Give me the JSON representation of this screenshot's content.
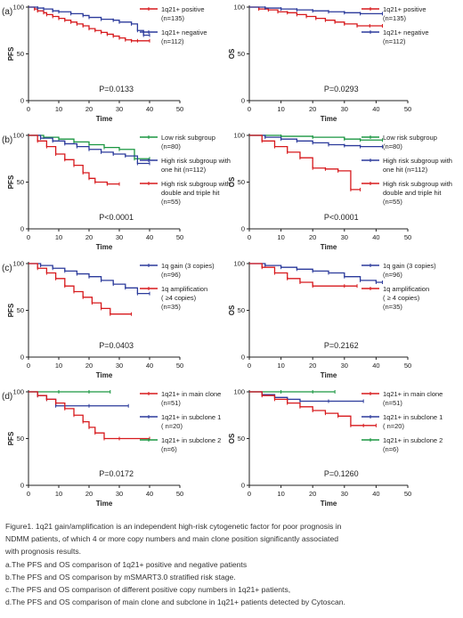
{
  "colors": {
    "red": "#d7191c",
    "blue": "#2b3a9b",
    "green": "#1a9641",
    "axis": "#222222"
  },
  "chart_data": [
    {
      "type": "line",
      "panel": "(a)",
      "xlabel": "Time",
      "ylabel": "PFS",
      "xlim": [
        0,
        50
      ],
      "ylim": [
        0,
        100
      ],
      "xticks": [
        "0",
        "10",
        "20",
        "30",
        "40",
        "50"
      ],
      "yticks": [
        "0",
        "50",
        "100"
      ],
      "annotation": "P=0.0133",
      "legend": [
        {
          "color": "red",
          "lines": [
            "1q21+ positive",
            "(n=135)"
          ]
        },
        {
          "color": "blue",
          "lines": [
            "1q21+ negative",
            "(n=112)"
          ]
        }
      ],
      "series": [
        {
          "color": "red",
          "x": [
            0,
            2,
            3,
            5,
            6,
            8,
            10,
            12,
            14,
            16,
            18,
            20,
            22,
            24,
            26,
            28,
            30,
            32,
            34,
            36,
            40
          ],
          "y": [
            100,
            98,
            96,
            94,
            92,
            90,
            88,
            86,
            84,
            82,
            80,
            77,
            75,
            73,
            71,
            69,
            67,
            65,
            64,
            64,
            64
          ]
        },
        {
          "color": "blue",
          "x": [
            0,
            3,
            5,
            8,
            10,
            14,
            18,
            20,
            24,
            28,
            30,
            34,
            36,
            38,
            40
          ],
          "y": [
            100,
            99,
            98,
            96,
            95,
            93,
            91,
            89,
            87,
            86,
            84,
            82,
            75,
            70,
            70
          ]
        }
      ]
    },
    {
      "type": "line",
      "panel": "",
      "xlabel": "Time",
      "ylabel": "OS",
      "xlim": [
        0,
        50
      ],
      "ylim": [
        0,
        100
      ],
      "xticks": [
        "0",
        "10",
        "20",
        "30",
        "40",
        "50"
      ],
      "yticks": [
        "0",
        "50",
        "100"
      ],
      "annotation": "P=0.0293",
      "legend": [
        {
          "color": "red",
          "lines": [
            "1q21+ positive",
            "(n=135)"
          ]
        },
        {
          "color": "blue",
          "lines": [
            "1q21+ negative",
            "(n=112)"
          ]
        }
      ],
      "series": [
        {
          "color": "red",
          "x": [
            0,
            3,
            6,
            9,
            12,
            15,
            18,
            21,
            24,
            27,
            30,
            34,
            38,
            42
          ],
          "y": [
            100,
            98,
            97,
            95,
            94,
            92,
            90,
            88,
            86,
            84,
            82,
            80,
            80,
            80
          ]
        },
        {
          "color": "blue",
          "x": [
            0,
            5,
            10,
            15,
            20,
            25,
            30,
            35,
            42
          ],
          "y": [
            100,
            99,
            98,
            97,
            96,
            95,
            94,
            93,
            93
          ]
        }
      ]
    },
    {
      "type": "line",
      "panel": "(b)",
      "xlabel": "Time",
      "ylabel": "PFS",
      "xlim": [
        0,
        50
      ],
      "ylim": [
        0,
        100
      ],
      "xticks": [
        "0",
        "10",
        "20",
        "30",
        "40",
        "50"
      ],
      "yticks": [
        "0",
        "50",
        "100"
      ],
      "annotation": "P<0.0001",
      "legend": [
        {
          "color": "green",
          "lines": [
            "Low risk subgroup",
            "(n=80)"
          ]
        },
        {
          "color": "blue",
          "lines": [
            "High risk subgroup with",
            "one hit (n=112)"
          ]
        },
        {
          "color": "red",
          "lines": [
            "High risk subgroup with",
            "double and triple hit",
            "(n=55)"
          ]
        }
      ],
      "series": [
        {
          "color": "green",
          "x": [
            0,
            5,
            10,
            15,
            20,
            25,
            30,
            35,
            40
          ],
          "y": [
            100,
            98,
            96,
            93,
            90,
            87,
            85,
            75,
            75
          ]
        },
        {
          "color": "blue",
          "x": [
            0,
            4,
            8,
            12,
            16,
            20,
            24,
            28,
            32,
            36,
            40
          ],
          "y": [
            100,
            97,
            94,
            91,
            88,
            85,
            82,
            80,
            78,
            70,
            70
          ]
        },
        {
          "color": "red",
          "x": [
            0,
            3,
            6,
            9,
            12,
            15,
            18,
            20,
            22,
            26,
            30
          ],
          "y": [
            100,
            94,
            88,
            80,
            74,
            68,
            60,
            54,
            50,
            48,
            48
          ]
        }
      ]
    },
    {
      "type": "line",
      "panel": "",
      "xlabel": "Time",
      "ylabel": "OS",
      "xlim": [
        0,
        50
      ],
      "ylim": [
        0,
        100
      ],
      "xticks": [
        "0",
        "10",
        "20",
        "30",
        "40",
        "50"
      ],
      "yticks": [
        "0",
        "50",
        "100"
      ],
      "annotation": "P<0.0001",
      "legend": [
        {
          "color": "green",
          "lines": [
            "Low risk subgroup",
            "(n=80)"
          ]
        },
        {
          "color": "blue",
          "lines": [
            "High risk subgroup with",
            "one hit (n=112)"
          ]
        },
        {
          "color": "red",
          "lines": [
            "High risk subgroup with",
            "double and triple hit",
            "(n=55)"
          ]
        }
      ],
      "series": [
        {
          "color": "green",
          "x": [
            0,
            10,
            20,
            30,
            35,
            42
          ],
          "y": [
            100,
            99,
            98,
            96,
            95,
            95
          ]
        },
        {
          "color": "blue",
          "x": [
            0,
            5,
            10,
            15,
            20,
            25,
            30,
            35,
            42
          ],
          "y": [
            100,
            98,
            96,
            94,
            92,
            90,
            89,
            88,
            88
          ]
        },
        {
          "color": "red",
          "x": [
            0,
            4,
            8,
            12,
            16,
            20,
            24,
            28,
            32,
            35
          ],
          "y": [
            100,
            94,
            88,
            82,
            76,
            65,
            64,
            62,
            42,
            42
          ]
        }
      ]
    },
    {
      "type": "line",
      "panel": "(c)",
      "xlabel": "Time",
      "ylabel": "PFS",
      "xlim": [
        0,
        50
      ],
      "ylim": [
        0,
        100
      ],
      "xticks": [
        "0",
        "10",
        "20",
        "30",
        "40",
        "50"
      ],
      "yticks": [
        "0",
        "50",
        "100"
      ],
      "annotation": "P=0.0403",
      "legend": [
        {
          "color": "blue",
          "lines": [
            "1q gain (3 copies)",
            "(n=96)"
          ]
        },
        {
          "color": "red",
          "lines": [
            "1q amplification",
            "( ≥4 copies)",
            "(n=35)"
          ]
        }
      ],
      "series": [
        {
          "color": "blue",
          "x": [
            0,
            4,
            8,
            12,
            16,
            20,
            24,
            28,
            32,
            36,
            40
          ],
          "y": [
            100,
            98,
            95,
            92,
            89,
            86,
            82,
            78,
            74,
            68,
            68
          ]
        },
        {
          "color": "red",
          "x": [
            0,
            3,
            6,
            9,
            12,
            15,
            18,
            21,
            24,
            27,
            34
          ],
          "y": [
            100,
            95,
            90,
            84,
            76,
            70,
            64,
            58,
            52,
            46,
            46
          ]
        }
      ]
    },
    {
      "type": "line",
      "panel": "",
      "xlabel": "Time",
      "ylabel": "OS",
      "xlim": [
        0,
        50
      ],
      "ylim": [
        0,
        100
      ],
      "xticks": [
        "0",
        "10",
        "20",
        "30",
        "40",
        "50"
      ],
      "yticks": [
        "0",
        "50",
        "100"
      ],
      "annotation": "P=0.2162",
      "legend": [
        {
          "color": "blue",
          "lines": [
            "1q gain (3 copies)",
            "(n=96)"
          ]
        },
        {
          "color": "red",
          "lines": [
            "1q amplification",
            "( ≥ 4 copies)",
            "(n=35)"
          ]
        }
      ],
      "series": [
        {
          "color": "blue",
          "x": [
            0,
            5,
            10,
            15,
            20,
            25,
            30,
            35,
            40,
            42
          ],
          "y": [
            100,
            98,
            96,
            94,
            92,
            90,
            86,
            82,
            80,
            80
          ]
        },
        {
          "color": "red",
          "x": [
            0,
            4,
            8,
            12,
            16,
            20,
            30,
            34
          ],
          "y": [
            100,
            96,
            90,
            84,
            80,
            76,
            76,
            76
          ]
        }
      ]
    },
    {
      "type": "line",
      "panel": "(d)",
      "xlabel": "Time",
      "ylabel": "PFS",
      "xlim": [
        0,
        50
      ],
      "ylim": [
        0,
        100
      ],
      "xticks": [
        "0",
        "10",
        "20",
        "30",
        "40",
        "50"
      ],
      "yticks": [
        "0",
        "50",
        "100"
      ],
      "annotation": "P=0.0172",
      "legend": [
        {
          "color": "red",
          "lines": [
            "1q21+ in main clone",
            "(n=51)"
          ]
        },
        {
          "color": "blue",
          "lines": [
            "1q21+ in subclone 1",
            "( n=20)"
          ]
        },
        {
          "color": "green",
          "lines": [
            "1q21+ in subclone 2",
            "(n=6)"
          ]
        }
      ],
      "series": [
        {
          "color": "green",
          "x": [
            0,
            10,
            20,
            27
          ],
          "y": [
            100,
            100,
            100,
            100
          ]
        },
        {
          "color": "blue",
          "x": [
            0,
            3,
            6,
            9,
            20,
            33
          ],
          "y": [
            100,
            96,
            92,
            85,
            85,
            85
          ]
        },
        {
          "color": "red",
          "x": [
            0,
            3,
            6,
            9,
            12,
            15,
            18,
            20,
            22,
            25,
            30,
            40
          ],
          "y": [
            100,
            96,
            92,
            88,
            82,
            75,
            68,
            62,
            56,
            50,
            50,
            50
          ]
        }
      ]
    },
    {
      "type": "line",
      "panel": "",
      "xlabel": "Time",
      "ylabel": "OS",
      "xlim": [
        0,
        50
      ],
      "ylim": [
        0,
        100
      ],
      "xticks": [
        "0",
        "10",
        "20",
        "30",
        "40",
        "50"
      ],
      "yticks": [
        "0",
        "50",
        "100"
      ],
      "annotation": "P=0.1260",
      "legend": [
        {
          "color": "red",
          "lines": [
            "1q21+ in main clone",
            "(n=51)"
          ]
        },
        {
          "color": "blue",
          "lines": [
            "1q21+ in subclone 1",
            "( n=20)"
          ]
        },
        {
          "color": "green",
          "lines": [
            "1q21+ in subclone 2",
            "(n=6)"
          ]
        }
      ],
      "series": [
        {
          "color": "green",
          "x": [
            0,
            10,
            20,
            27
          ],
          "y": [
            100,
            100,
            100,
            100
          ]
        },
        {
          "color": "blue",
          "x": [
            0,
            4,
            8,
            12,
            16,
            25,
            36
          ],
          "y": [
            100,
            97,
            94,
            92,
            90,
            90,
            90
          ]
        },
        {
          "color": "red",
          "x": [
            0,
            4,
            8,
            12,
            16,
            20,
            24,
            28,
            32,
            36,
            40
          ],
          "y": [
            100,
            96,
            92,
            88,
            84,
            80,
            77,
            74,
            64,
            64,
            64
          ]
        }
      ]
    }
  ],
  "caption": [
    "Figure1. 1q21 gain/amplification is an independent high-risk cytogenetic factor for poor prognosis in",
    "NDMM patients, of which 4 or more copy numbers and main clone position significantly associated",
    "with prognosis results.",
    "a.The PFS and OS comparison of 1q21+ positive and negative patients",
    "b.The PFS and OS comparison by mSMART3.0 stratified risk stage.",
    "c.The PFS and OS comparison of different positive copy numbers in 1q21+ patients,",
    "d.The PFS and OS comparison of main clone and subclone in 1q21+ patients detected by Cytoscan."
  ]
}
